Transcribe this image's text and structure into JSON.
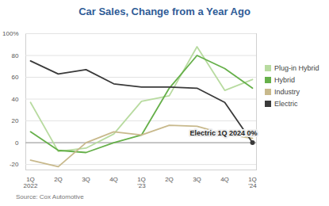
{
  "chart_data": {
    "type": "line",
    "title": "Car Sales, Change from a Year Ago",
    "source": "Source: Cox Automotive",
    "categories": [
      "1Q\n2022",
      "2Q",
      "3Q",
      "4Q",
      "1Q\n'23",
      "2Q",
      "3Q",
      "4Q",
      "1Q\n'24"
    ],
    "series": [
      {
        "name": "Plug-in Hybrid",
        "color": "#b8dba0",
        "values": [
          37,
          -8,
          -5,
          8,
          38,
          43,
          88,
          48,
          58
        ]
      },
      {
        "name": "Hybrid",
        "color": "#66b04a",
        "values": [
          10,
          -7,
          -9,
          0,
          7,
          50,
          80,
          68,
          50
        ]
      },
      {
        "name": "Industry",
        "color": "#c8b98c",
        "values": [
          -16,
          -22,
          0,
          10,
          7,
          16,
          15,
          8,
          4
        ]
      },
      {
        "name": "Electric",
        "color": "#3a3a3a",
        "values": [
          75,
          63,
          67,
          54,
          51,
          51,
          50,
          37,
          0
        ]
      }
    ],
    "annotation": {
      "series": "Electric",
      "text": "1Q 2024 0%"
    },
    "ylim": [
      -25,
      100
    ],
    "yticks": [
      -20,
      0,
      20,
      40,
      60,
      {
        "value": 80,
        "label": "80"
      },
      {
        "value": 100,
        "label": "100%"
      }
    ],
    "grid": true,
    "legend": "right"
  }
}
